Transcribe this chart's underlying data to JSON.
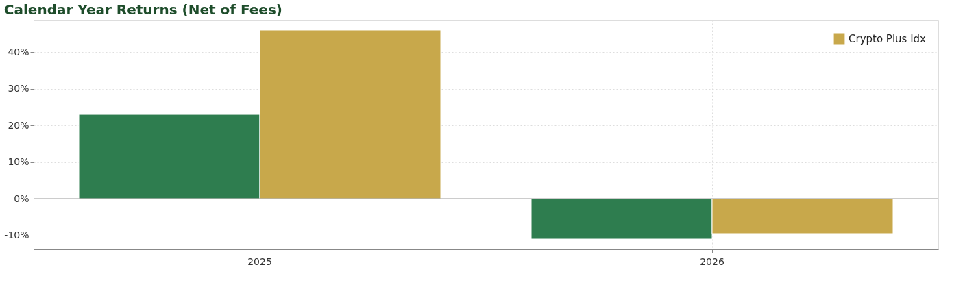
{
  "chart_data": {
    "type": "bar",
    "title": "Calendar Year Returns (Net of Fees)",
    "categories": [
      "2025",
      "2026"
    ],
    "series": [
      {
        "color": "#2e7d4f",
        "values": [
          23,
          -11
        ]
      },
      {
        "name": "Crypto Plus Idx",
        "color": "#c8a84b",
        "values": [
          46,
          -9.5
        ]
      }
    ],
    "ylim": [
      -13.8,
      48.8
    ],
    "yticks": [
      {
        "value": -10,
        "label": "-10%"
      },
      {
        "value": 0,
        "label": "0%"
      },
      {
        "value": 10,
        "label": "10%"
      },
      {
        "value": 20,
        "label": "20%"
      },
      {
        "value": 30,
        "label": "30%"
      },
      {
        "value": 40,
        "label": "40%"
      }
    ],
    "ref_lines": [
      {
        "axis": "y",
        "value": 0,
        "color": "#999999"
      }
    ],
    "grid": true,
    "legend": "top right"
  }
}
